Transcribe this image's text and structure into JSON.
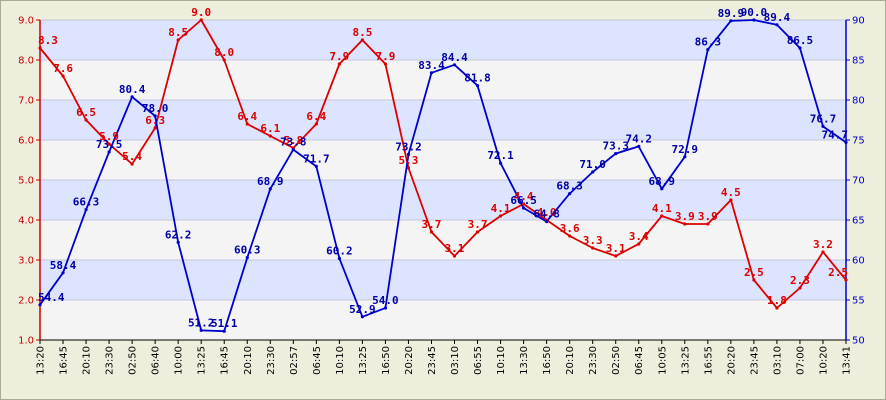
{
  "chart_data": {
    "type": "line",
    "x": [
      "13:20",
      "16:45",
      "20:10",
      "23:30",
      "02:50",
      "06:40",
      "10:00",
      "13:25",
      "16:45",
      "20:10",
      "23:30",
      "02:57",
      "06:45",
      "10:10",
      "13:25",
      "16:50",
      "20:20",
      "23:45",
      "03:10",
      "06:55",
      "10:10",
      "13:30",
      "16:50",
      "20:10",
      "23:30",
      "02:50",
      "06:45",
      "10:05",
      "13:25",
      "16:55",
      "20:20",
      "23:45",
      "03:10",
      "07:00",
      "10:20",
      "13:41"
    ],
    "left_axis": {
      "ylim": [
        1.0,
        9.0
      ],
      "ticks": [
        "1.0",
        "2.0",
        "3.0",
        "4.0",
        "5.0",
        "6.0",
        "7.0",
        "8.0",
        "9.0"
      ],
      "color": "#cc0000"
    },
    "right_axis": {
      "ylim": [
        50,
        90
      ],
      "ticks": [
        "50",
        "55",
        "60",
        "65",
        "70",
        "75",
        "80",
        "85",
        "90"
      ],
      "color": "#0000cc"
    },
    "grid": true,
    "band_colors": [
      "#f4f4f4",
      "#dce4ff"
    ],
    "series": [
      {
        "axis": "left",
        "color": "#dd0000",
        "values": [
          8.3,
          7.6,
          6.5,
          5.9,
          5.4,
          6.3,
          8.5,
          9.0,
          8.0,
          6.4,
          6.1,
          5.8,
          6.4,
          7.9,
          8.5,
          7.9,
          5.3,
          3.7,
          3.1,
          3.7,
          4.1,
          4.4,
          4.0,
          3.6,
          3.3,
          3.1,
          3.4,
          4.1,
          3.9,
          3.9,
          4.5,
          2.5,
          1.8,
          2.3,
          3.2,
          2.5
        ],
        "labels": [
          "8.3",
          "7.6",
          "6.5",
          "5.9",
          "5.4",
          "6.3",
          "8.5",
          "9.0",
          "8.0",
          "6.4",
          "6.1",
          "5.8",
          "6.4",
          "7.9",
          "8.5",
          "7.9",
          "5.3",
          "3.7",
          "3.1",
          "3.7",
          "4.1",
          "4.4",
          "4.0",
          "3.6",
          "3.3",
          "3.1",
          "3.4",
          "4.1",
          "3.9",
          "3.9",
          "4.5",
          "2.5",
          "1.8",
          "2.3",
          "3.2",
          "2.5"
        ]
      },
      {
        "axis": "right",
        "color": "#0000cc",
        "values": [
          54.4,
          58.4,
          66.3,
          73.5,
          80.4,
          78.0,
          62.2,
          51.2,
          51.1,
          60.3,
          68.9,
          73.8,
          71.7,
          60.2,
          52.9,
          54.0,
          73.2,
          83.4,
          84.4,
          81.8,
          72.1,
          66.5,
          64.8,
          68.3,
          71.0,
          73.3,
          74.2,
          68.9,
          72.9,
          86.3,
          89.9,
          90.0,
          89.4,
          86.5,
          76.7,
          74.7
        ],
        "labels": [
          "54.4",
          "58.4",
          "66.3",
          "73.5",
          "80.4",
          "78.0",
          "62.2",
          "51.2",
          "51.1",
          "60.3",
          "68.9",
          "73.8",
          "71.7",
          "60.2",
          "52.9",
          "54.0",
          "73.2",
          "83.4",
          "84.4",
          "81.8",
          "72.1",
          "66.5",
          "64.8",
          "68.3",
          "71.0",
          "73.3",
          "74.2",
          "68.9",
          "72.9",
          "86.3",
          "89.9",
          "90.0",
          "89.4",
          "86.5",
          "76.7",
          "74.7"
        ]
      }
    ]
  }
}
